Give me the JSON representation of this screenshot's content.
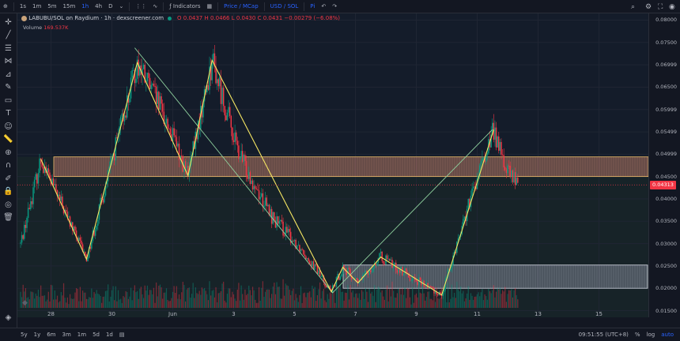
{
  "toolbar": {
    "intervals": [
      "1s",
      "1m",
      "5m",
      "15m",
      "1h",
      "4h",
      "D"
    ],
    "active_interval": "1h",
    "indicators_label": "Indicators",
    "price_mcap": "Price / MCap",
    "currency": "USD / SOL",
    "extra": "Pi"
  },
  "legend": {
    "symbol": "LABUBU/SOL on Raydium · 1h · dexscreener.com",
    "o": "O 0.0437",
    "h": "H 0.0466",
    "l": "L 0.0430",
    "c": "C 0.0431",
    "change": "−0.00279 (−6.08%)",
    "volume_label": "Volume",
    "volume_value": "169.537K"
  },
  "price_axis": [
    "0.08000",
    "0.07500",
    "0.06999",
    "0.06500",
    "0.05999",
    "0.05499",
    "0.04999",
    "0.04500",
    "0.04000",
    "0.03500",
    "0.03000",
    "0.02500",
    "0.02000",
    "0.01500"
  ],
  "last_price": "0.04313",
  "bottombar": {
    "ranges": [
      "5y",
      "1y",
      "6m",
      "3m",
      "1m",
      "5d",
      "1d"
    ],
    "time": "09:51:55 (UTC+8)",
    "pct": "%",
    "log": "log",
    "auto": "auto"
  },
  "colors": {
    "up": "#089981",
    "down": "#f23645",
    "zone_upper": "#c47a6b",
    "zone_lower": "#aab0c0",
    "yellow": "#f5e663",
    "green_line": "#8fd19e"
  },
  "chart_data": {
    "type": "candlestick",
    "x_ticks": [
      "28",
      "30",
      "Jun",
      "3",
      "5",
      "7",
      "9",
      "11",
      "13",
      "15"
    ],
    "y_range": [
      0.0135,
      0.0815
    ],
    "last_price": 0.04313,
    "zones": [
      {
        "from": 0.045,
        "to": 0.0494
      },
      {
        "from": 0.02,
        "to": 0.0252
      }
    ],
    "yellow_path": [
      [
        "May 27 16:00",
        0.0489
      ],
      [
        "May 29 04:00",
        0.0265
      ],
      [
        "May 30 20:00",
        0.0705
      ],
      [
        "Jun 1 12:00",
        0.0452
      ],
      [
        "Jun 2 07:00",
        0.071
      ],
      [
        "Jun 6 05:00",
        0.0192
      ],
      [
        "Jun 6 14:00",
        0.0247
      ],
      [
        "Jun 7 02:00",
        0.0212
      ],
      [
        "Jun 7 20:00",
        0.027
      ],
      [
        "Jun 9 20:00",
        0.0185
      ],
      [
        "Jun 11 13:00",
        0.0555
      ]
    ],
    "green_path": [
      [
        "May 30 18:00",
        0.0738
      ],
      [
        "Jun 6 06:00",
        0.019
      ],
      [
        "Jun 11 12:00",
        0.0555
      ]
    ],
    "anchors": [
      [
        "May 27 00:00",
        0.03
      ],
      [
        "May 27 16:00",
        0.0489
      ],
      [
        "May 29 04:00",
        0.0265
      ],
      [
        "May 30 20:00",
        0.0705
      ],
      [
        "May 31 18:00",
        0.058
      ],
      [
        "Jun 1 12:00",
        0.0452
      ],
      [
        "Jun 2 07:00",
        0.071
      ],
      [
        "Jun 3 04:00",
        0.05
      ],
      [
        "Jun 4 06:00",
        0.036
      ],
      [
        "Jun 5 08:00",
        0.028
      ],
      [
        "Jun 6 05:00",
        0.0192
      ],
      [
        "Jun 6 14:00",
        0.0247
      ],
      [
        "Jun 7 02:00",
        0.0212
      ],
      [
        "Jun 7 20:00",
        0.027
      ],
      [
        "Jun 8 20:00",
        0.0225
      ],
      [
        "Jun 9 20:00",
        0.0185
      ],
      [
        "Jun 10 12:00",
        0.034
      ],
      [
        "Jun 11 13:00",
        0.0555
      ],
      [
        "Jun 11 22:00",
        0.047
      ],
      [
        "Jun 12 08:00",
        0.0431
      ]
    ]
  }
}
